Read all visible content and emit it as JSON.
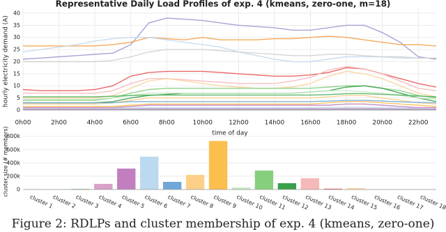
{
  "chart_data": [
    {
      "type": "line",
      "title": "Representative Daily Load Profiles of exp. 4 (kmeans, zero-one, m=18)",
      "xlabel": "time of day",
      "ylabel": "hourly electricity demand (A)",
      "x": [
        0,
        1,
        2,
        3,
        4,
        5,
        6,
        7,
        8,
        9,
        10,
        11,
        12,
        13,
        14,
        15,
        16,
        17,
        18,
        19,
        20,
        21,
        22,
        23
      ],
      "xlim": [
        0,
        23
      ],
      "xticks": [
        {
          "value": 0,
          "label": "0h00"
        },
        {
          "value": 2,
          "label": "2h00"
        },
        {
          "value": 4,
          "label": "4h00"
        },
        {
          "value": 6,
          "label": "6h00"
        },
        {
          "value": 8,
          "label": "8h00"
        },
        {
          "value": 10,
          "label": "10h00"
        },
        {
          "value": 12,
          "label": "12h00"
        },
        {
          "value": 14,
          "label": "14h00"
        },
        {
          "value": 16,
          "label": "16h00"
        },
        {
          "value": 18,
          "label": "18h00"
        },
        {
          "value": 20,
          "label": "20h00"
        },
        {
          "value": 22,
          "label": "22h00"
        }
      ],
      "ylim": [
        0,
        42
      ],
      "yticks": [
        0,
        5,
        10,
        15,
        20,
        25,
        30,
        35,
        40
      ],
      "grid": true,
      "series": [
        {
          "color": "#9f9ad0",
          "values": [
            21,
            21.5,
            22,
            22.5,
            23,
            23.5,
            27,
            36,
            38,
            37.5,
            37,
            36,
            35,
            34.5,
            34,
            33,
            33,
            34,
            35,
            35,
            32,
            28,
            22,
            21
          ]
        },
        {
          "color": "#f5a04a",
          "values": [
            26.5,
            26.5,
            26.5,
            26.5,
            26.5,
            27,
            28,
            30,
            29.5,
            29,
            30,
            29,
            29,
            29,
            29.5,
            29.5,
            30,
            30.5,
            30,
            29,
            28,
            27,
            27,
            26.5
          ]
        },
        {
          "color": "#c3d9ee",
          "values": [
            24,
            25,
            26,
            27,
            28.5,
            29.5,
            30,
            30,
            29,
            28,
            27,
            26,
            24,
            22.5,
            21,
            20,
            20,
            21,
            22,
            22,
            22,
            21.5,
            21.5,
            21.5
          ]
        },
        {
          "color": "#e8585a",
          "values": [
            8.5,
            8,
            8,
            8,
            8.5,
            10,
            14,
            15.5,
            16,
            16,
            16,
            15.5,
            15,
            14.5,
            14,
            14,
            14.5,
            15.5,
            17.5,
            17,
            15,
            13,
            11,
            9.5
          ]
        },
        {
          "color": "#f7b8b9",
          "values": [
            7,
            7,
            7,
            7,
            7,
            8,
            11,
            13,
            13,
            12.5,
            12,
            11.5,
            11,
            11,
            11,
            12,
            13.5,
            16.5,
            18,
            17,
            15,
            12,
            9,
            8
          ]
        },
        {
          "color": "#fcd49b",
          "values": [
            5,
            5,
            5,
            5,
            5,
            6,
            9,
            12,
            13,
            12,
            11,
            10,
            9.5,
            9,
            9,
            9.5,
            11,
            14,
            16,
            15,
            13,
            10,
            7,
            5.5
          ]
        },
        {
          "color": "#86cf7d",
          "values": [
            4,
            4,
            4,
            4,
            4,
            5,
            7,
            8.5,
            9,
            9,
            9,
            9,
            9,
            9,
            9,
            9,
            9,
            9.5,
            10,
            10,
            9,
            8,
            6,
            5
          ]
        },
        {
          "color": "#3aa04a",
          "values": [
            3,
            3,
            3,
            3,
            3,
            3.5,
            5,
            6,
            6.5,
            7,
            7,
            7,
            7,
            7,
            7,
            7,
            7.5,
            8,
            9.5,
            10,
            9,
            7,
            5,
            3.5
          ]
        },
        {
          "color": "#c5e8c0",
          "values": [
            4.5,
            4.5,
            4.5,
            4.5,
            4.5,
            5,
            6,
            7,
            7,
            7,
            7,
            7,
            7,
            7,
            7,
            7,
            7.5,
            8,
            8,
            7.5,
            7,
            6,
            5,
            4.5
          ]
        },
        {
          "color": "#fbbf4c",
          "values": [
            1.5,
            1.5,
            1.5,
            1.5,
            1.5,
            1.5,
            2,
            2.5,
            2.5,
            2.5,
            2.5,
            2.5,
            2.5,
            2.5,
            2.5,
            2.5,
            2.5,
            3,
            3.5,
            3.5,
            3,
            2.5,
            2,
            1.5
          ]
        },
        {
          "color": "#fdd08a",
          "values": [
            2.5,
            2.5,
            2.5,
            2.5,
            2.5,
            3,
            4,
            5,
            5,
            5,
            5,
            5,
            5,
            5,
            5,
            5,
            5,
            5.5,
            6,
            6,
            5,
            4,
            3,
            2.5
          ]
        },
        {
          "color": "#c17fbf",
          "values": [
            1,
            1,
            1,
            1,
            1,
            1,
            1.5,
            2,
            2,
            2,
            2,
            2,
            2,
            2,
            2,
            2,
            2,
            2,
            2.5,
            2.5,
            2,
            1.5,
            1,
            1
          ]
        },
        {
          "color": "#bcd9ef",
          "values": [
            0.6,
            0.6,
            0.6,
            0.6,
            0.6,
            0.7,
            0.9,
            1,
            1,
            1,
            1,
            1,
            1,
            1,
            1,
            1,
            1,
            1.1,
            1.2,
            1.2,
            1,
            0.9,
            0.7,
            0.6
          ]
        },
        {
          "color": "#6fa8d6",
          "values": [
            3,
            3,
            3,
            3,
            3,
            3,
            3.5,
            3.5,
            3.5,
            3.5,
            3.5,
            3.5,
            3.5,
            3.5,
            3.5,
            3.5,
            3.5,
            3.7,
            4,
            4,
            3.7,
            3.4,
            3.2,
            3
          ]
        },
        {
          "color": "#d9a0c8",
          "values": [
            0.4,
            0.4,
            0.4,
            0.4,
            0.4,
            0.4,
            0.5,
            0.6,
            0.6,
            0.6,
            0.6,
            0.6,
            0.6,
            0.6,
            0.6,
            0.6,
            0.6,
            0.6,
            0.7,
            0.7,
            0.6,
            0.5,
            0.4,
            0.4
          ]
        },
        {
          "color": "#4caf5a",
          "values": [
            5.5,
            5.5,
            5.5,
            5.5,
            5.5,
            5.7,
            6,
            6.2,
            6.2,
            6.2,
            6.2,
            6.2,
            6.2,
            6.2,
            6.2,
            6.2,
            6.2,
            6.4,
            6.8,
            6.8,
            6.5,
            6.2,
            5.8,
            5.5
          ]
        },
        {
          "color": "#d0d0d0",
          "values": [
            20,
            20,
            20,
            20,
            20,
            20.5,
            22,
            24,
            25,
            25,
            25,
            24.5,
            24,
            23.5,
            23,
            22.5,
            22.5,
            23,
            23,
            22.5,
            22,
            22,
            21.5,
            21.5
          ]
        },
        {
          "color": "#9a9ab0",
          "values": [
            0.2,
            0.2,
            0.2,
            0.2,
            0.2,
            0.2,
            0.25,
            0.3,
            0.3,
            0.3,
            0.3,
            0.3,
            0.3,
            0.3,
            0.3,
            0.3,
            0.3,
            0.3,
            0.35,
            0.35,
            0.3,
            0.25,
            0.2,
            0.2
          ]
        }
      ]
    },
    {
      "type": "bar",
      "ylabel": "cluster size (# members)",
      "categories": [
        "cluster 1",
        "cluster 2",
        "cluster 3",
        "cluster 4",
        "cluster 5",
        "cluster 6",
        "cluster 7",
        "cluster 8",
        "cluster 9",
        "cluster 10",
        "cluster 11",
        "cluster 12",
        "cluster 13",
        "cluster 14",
        "cluster 15",
        "cluster 16",
        "cluster 17",
        "cluster 18"
      ],
      "values": [
        2000,
        2000,
        8000,
        85000,
        315000,
        495000,
        115000,
        220000,
        730000,
        30000,
        285000,
        95000,
        170000,
        12000,
        20000,
        2000,
        1000,
        1000
      ],
      "colors": [
        "#9a9ab0",
        "#b0b0c8",
        "#4caf5a",
        "#d9a0c8",
        "#c17fbf",
        "#bcd9ef",
        "#6fa8d6",
        "#fdd08a",
        "#fbbf4c",
        "#c5e8c0",
        "#86cf7d",
        "#3aa04a",
        "#f7b8b9",
        "#e8585a",
        "#fcd49b",
        "#d0d0d0",
        "#c3d9ee",
        "#9f9ad0"
      ],
      "ylim": [
        0,
        860000
      ],
      "yticks": [
        0,
        {
          "value": 200000,
          "label": "200k"
        },
        {
          "value": 400000,
          "label": "400k"
        },
        {
          "value": 600000,
          "label": "600k"
        },
        {
          "value": 800000,
          "label": "800k"
        }
      ],
      "grid": true
    }
  ],
  "caption": "Figure 2: RDLPs and cluster membership of exp. 4 (kmeans, zero-one)"
}
